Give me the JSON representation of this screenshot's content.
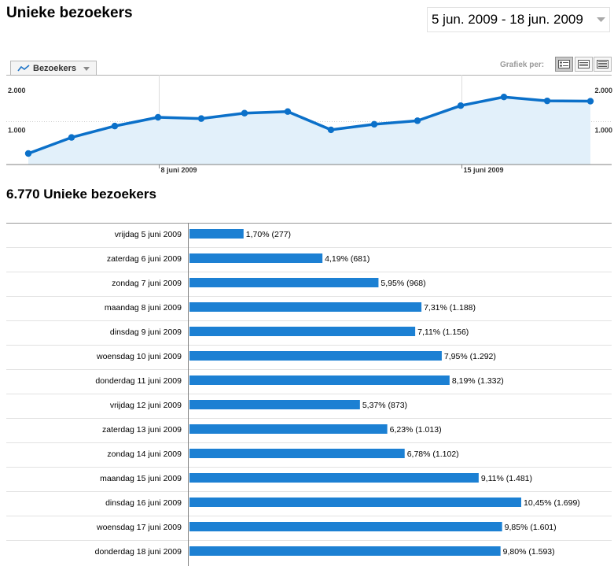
{
  "header": {
    "title": "Unieke bezoekers",
    "date_range": "5 jun. 2009 - 18 jun. 2009"
  },
  "toolbar": {
    "metric_label": "Bezoekers",
    "grafiek_per_label": "Grafiek per:",
    "view_options": [
      "dag",
      "week",
      "maand"
    ]
  },
  "colors": {
    "line": "#0b70c9",
    "area": "#e2f0fa",
    "bar": "#1c80d3",
    "grid": "#cfcfcf"
  },
  "chart_data": [
    {
      "type": "line",
      "title": "",
      "x": [
        "5 juni",
        "6 juni",
        "7 juni",
        "8 juni",
        "9 juni",
        "10 juni",
        "11 juni",
        "12 juni",
        "13 juni",
        "14 juni",
        "15 juni",
        "16 juni",
        "17 juni",
        "18 juni"
      ],
      "series": [
        {
          "name": "Bezoekers",
          "values": [
            277,
            681,
            968,
            1188,
            1156,
            1292,
            1332,
            873,
            1013,
            1102,
            1481,
            1699,
            1601,
            1593
          ]
        }
      ],
      "y_ticks": [
        {
          "value": 1000,
          "label": "1.000"
        },
        {
          "value": 2000,
          "label": "2.000"
        }
      ],
      "x_ticks": [
        {
          "index": 3,
          "label": "8 juni 2009"
        },
        {
          "index": 10,
          "label": "15 juni 2009"
        }
      ],
      "ylim": [
        0,
        2000
      ],
      "grid": true
    },
    {
      "type": "bar",
      "title": "6.770 Unieke bezoekers",
      "categories": [
        "vrijdag 5 juni 2009",
        "zaterdag 6 juni 2009",
        "zondag 7 juni 2009",
        "maandag 8 juni 2009",
        "dinsdag 9 juni 2009",
        "woensdag 10 juni 2009",
        "donderdag 11 juni 2009",
        "vrijdag 12 juni 2009",
        "zaterdag 13 juni 2009",
        "zondag 14 juni 2009",
        "maandag 15 juni 2009",
        "dinsdag 16 juni 2009",
        "woensdag 17 juni 2009",
        "donderdag 18 juni 2009"
      ],
      "values": [
        277,
        681,
        968,
        1188,
        1156,
        1292,
        1332,
        873,
        1013,
        1102,
        1481,
        1699,
        1601,
        1593
      ],
      "labels": [
        "1,70% (277)",
        "4,19% (681)",
        "5,95% (968)",
        "7,31% (1.188)",
        "7,11% (1.156)",
        "7,95% (1.292)",
        "8,19% (1.332)",
        "5,37% (873)",
        "6,23% (1.013)",
        "6,78% (1.102)",
        "9,11% (1.481)",
        "10,45% (1.699)",
        "9,85% (1.601)",
        "9,80% (1.593)"
      ]
    }
  ]
}
